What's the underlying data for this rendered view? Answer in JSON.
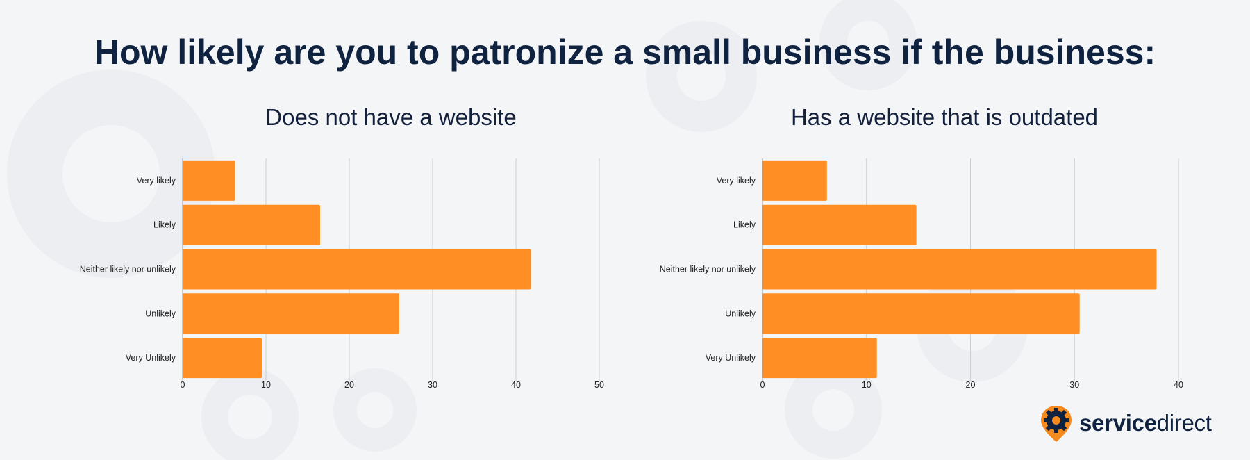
{
  "header": {
    "title": "How likely are you to patronize a small business if the business:"
  },
  "colors": {
    "bar": "#ff8f25",
    "grid": "#cfcfcf",
    "title": "#0f2240",
    "background": "#f4f5f7"
  },
  "logo": {
    "part1": "service",
    "part2": "direct",
    "icon": "gear-pin-icon"
  },
  "chart_data": [
    {
      "type": "bar",
      "orientation": "horizontal",
      "title": "Does not have a website",
      "categories": [
        "Very likely",
        "Likely",
        "Neither likely nor unlikely",
        "Unlikely",
        "Very Unlikely"
      ],
      "values": [
        6.3,
        16.5,
        41.8,
        26,
        9.5
      ],
      "xticks": [
        0,
        10,
        20,
        30,
        40,
        50
      ],
      "xlim": [
        0,
        50
      ],
      "grid": true
    },
    {
      "type": "bar",
      "orientation": "horizontal",
      "title": "Has a website that is outdated",
      "categories": [
        "Very likely",
        "Likely",
        "Neither likely nor unlikely",
        "Unlikely",
        "Very Unlikely"
      ],
      "values": [
        6.2,
        14.8,
        37.9,
        30.5,
        11
      ],
      "xticks": [
        0,
        10,
        20,
        30,
        40
      ],
      "xlim": [
        0,
        40
      ],
      "grid": true
    }
  ]
}
